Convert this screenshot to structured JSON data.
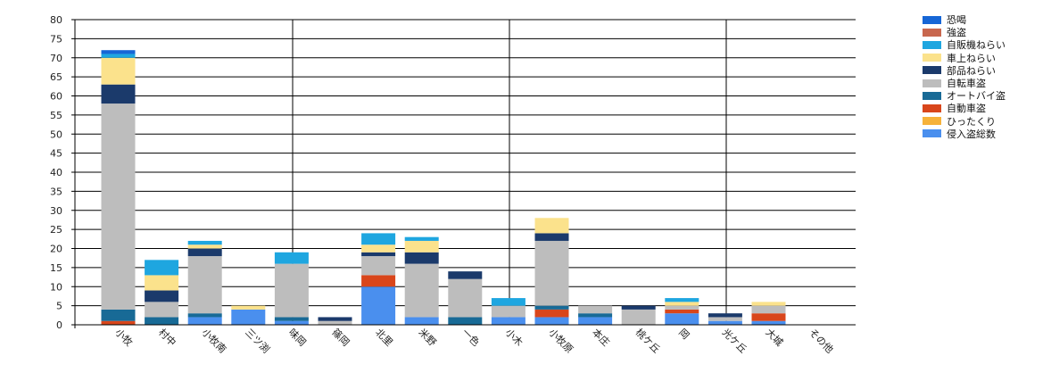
{
  "chart_data": {
    "type": "bar",
    "stacked": true,
    "title": "",
    "xlabel": "",
    "ylabel": "",
    "ylim": [
      0,
      80
    ],
    "yticks": [
      0,
      5,
      10,
      15,
      20,
      25,
      30,
      35,
      40,
      45,
      50,
      55,
      60,
      65,
      70,
      75,
      80
    ],
    "grid": "vertical lines every 5 categories, horizontal lines every 5 units",
    "legend_position": "top-right",
    "categories": [
      "小牧",
      "村中",
      "小牧南",
      "三ツ渕",
      "味岡",
      "篠岡",
      "北里",
      "米野",
      "一色",
      "小木",
      "小牧原",
      "本庄",
      "桃ケ丘",
      "岡",
      "光ケ丘",
      "大城",
      "その他"
    ],
    "series": [
      {
        "name": "侵入盗総数",
        "color": "#4a8fee",
        "values": [
          0,
          0,
          2,
          4,
          1,
          0,
          10,
          2,
          0,
          2,
          2,
          2,
          0,
          3,
          1,
          1,
          0
        ]
      },
      {
        "name": "ひったくり",
        "color": "#f6b23a",
        "values": [
          0,
          0,
          0,
          0,
          0,
          0,
          0,
          0,
          0,
          0,
          0,
          0,
          0,
          0,
          0,
          0,
          0
        ]
      },
      {
        "name": "自動車盗",
        "color": "#d9461b",
        "values": [
          1,
          0,
          0,
          0,
          0,
          0,
          3,
          0,
          0,
          0,
          2,
          0,
          0,
          1,
          0,
          2,
          0
        ]
      },
      {
        "name": "オートバイ盗",
        "color": "#186a96",
        "values": [
          3,
          2,
          1,
          0,
          1,
          0,
          0,
          0,
          2,
          0,
          1,
          1,
          0,
          0,
          0,
          0,
          0
        ]
      },
      {
        "name": "自転車盗",
        "color": "#bdbdbd",
        "values": [
          54,
          4,
          15,
          0,
          14,
          1,
          5,
          14,
          10,
          3,
          17,
          2,
          4,
          1,
          1,
          2,
          0
        ]
      },
      {
        "name": "部品ねらい",
        "color": "#1b3a6b",
        "values": [
          5,
          3,
          2,
          0,
          0,
          1,
          1,
          3,
          2,
          0,
          2,
          0,
          1,
          0,
          1,
          0,
          0
        ]
      },
      {
        "name": "車上ねらい",
        "color": "#fbe28c",
        "values": [
          7,
          4,
          1,
          1,
          0,
          0,
          2,
          3,
          0,
          0,
          4,
          0,
          0,
          1,
          0,
          1,
          0
        ]
      },
      {
        "name": "自販機ねらい",
        "color": "#1ea6e0",
        "values": [
          1,
          4,
          1,
          0,
          3,
          0,
          3,
          1,
          0,
          2,
          0,
          0,
          0,
          1,
          0,
          0,
          0
        ]
      },
      {
        "name": "強盗",
        "color": "#c8674e",
        "values": [
          0,
          0,
          0,
          0,
          0,
          0,
          0,
          0,
          0,
          0,
          0,
          0,
          0,
          0,
          0,
          0,
          0
        ]
      },
      {
        "name": "恐喝",
        "color": "#1666d6",
        "values": [
          1,
          0,
          0,
          0,
          0,
          0,
          0,
          0,
          0,
          0,
          0,
          0,
          0,
          0,
          0,
          0,
          0
        ]
      }
    ]
  }
}
